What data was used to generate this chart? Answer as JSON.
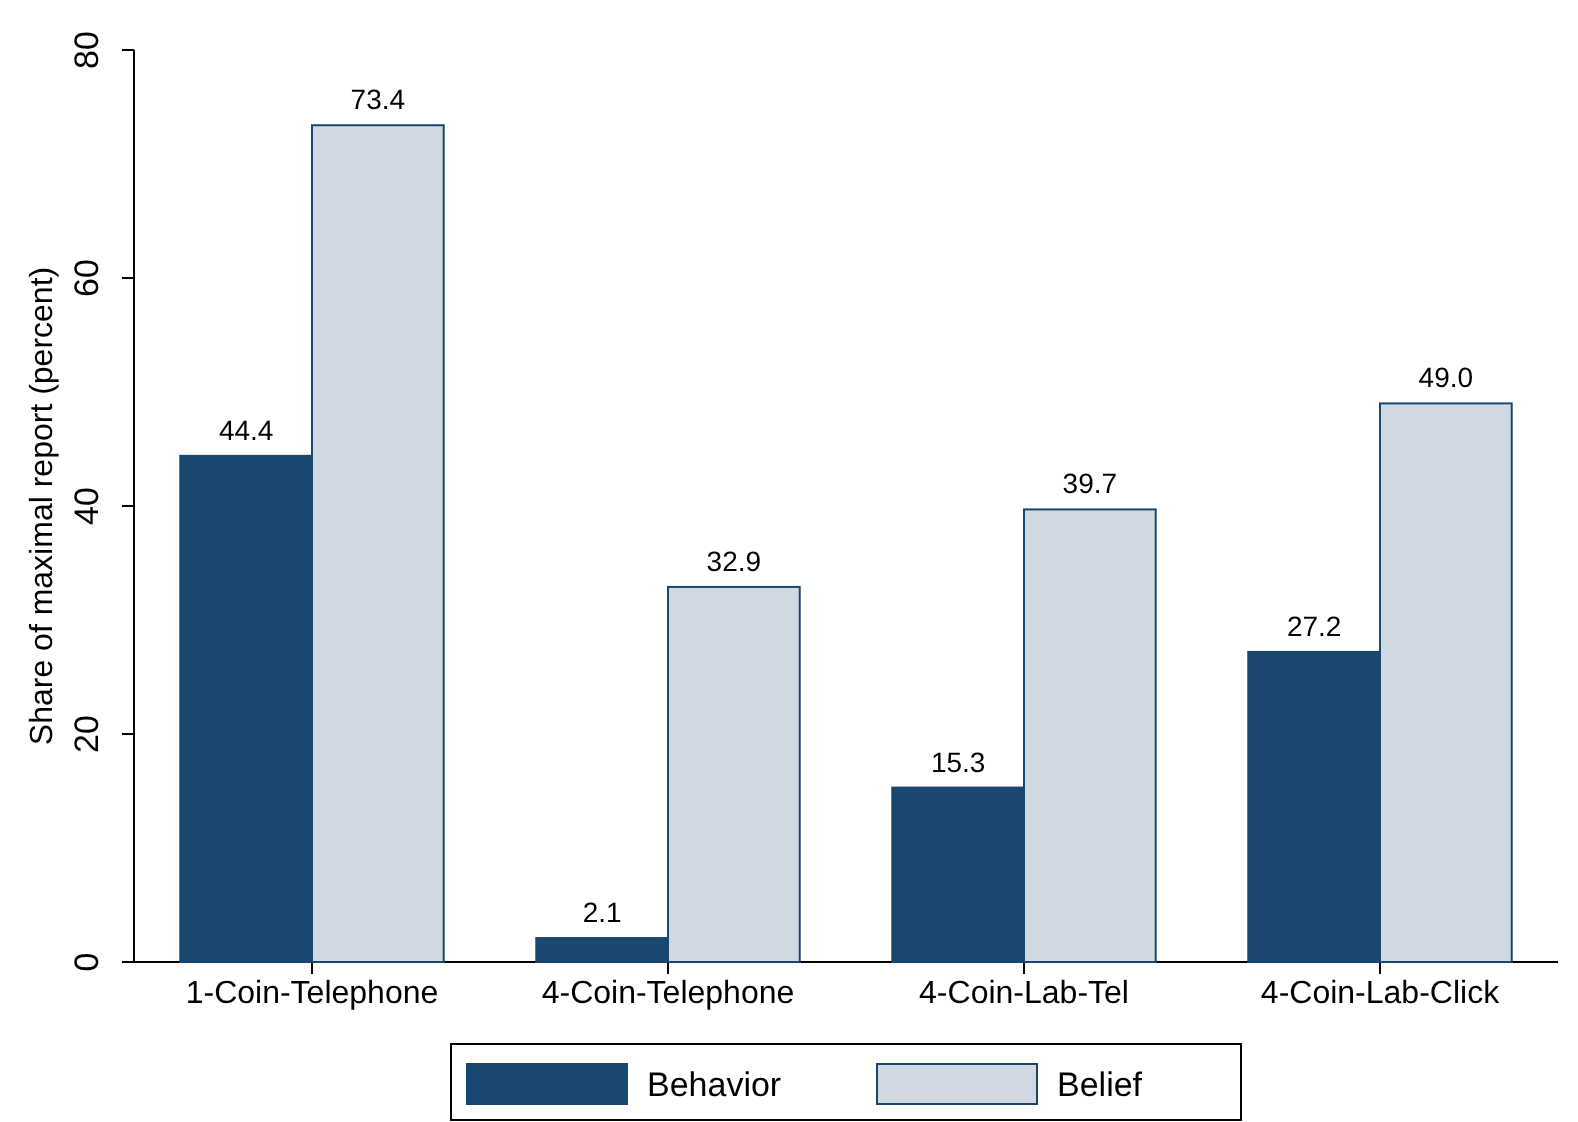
{
  "chart_data": {
    "type": "bar",
    "ylabel": "Share of maximal report (percent)",
    "categories": [
      "1-Coin-Telephone",
      "4-Coin-Telephone",
      "4-Coin-Lab-Tel",
      "4-Coin-Lab-Click"
    ],
    "series": [
      {
        "name": "Behavior",
        "color": "#1a476f",
        "values": [
          44.4,
          2.1,
          15.3,
          27.2
        ]
      },
      {
        "name": "Belief",
        "color": "#d0d9e2",
        "values": [
          73.4,
          32.9,
          39.7,
          49.0
        ]
      }
    ],
    "value_labels": [
      [
        "44.4",
        "2.1",
        "15.3",
        "27.2"
      ],
      [
        "73.4",
        "32.9",
        "39.7",
        "49.0"
      ]
    ],
    "ylim": [
      0,
      80
    ],
    "yticks": [
      0,
      20,
      40,
      60,
      80
    ],
    "grid": false,
    "legend": "bottom"
  }
}
